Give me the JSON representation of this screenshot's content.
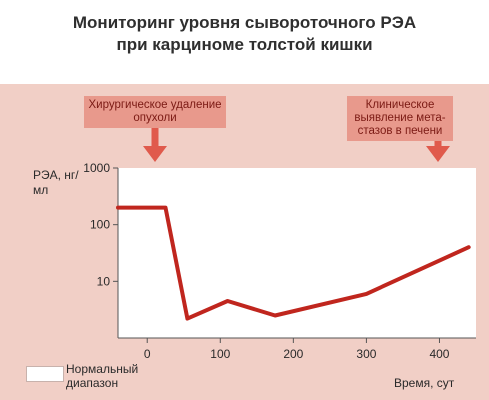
{
  "title_line1": "Мониторинг уровня сывороточного РЭА",
  "title_line2": "при карциноме толстой кишки",
  "annotations": {
    "surgery": "Хирургическое удаление опухоли",
    "metastases": "Клиническое выявление мета-стазов в печени"
  },
  "legend": {
    "normal_range": "Нормальный диапазон"
  },
  "colors": {
    "panel": "#f1cfc6",
    "series": "#c0261e",
    "annotation_box": "#e8998c",
    "arrow": "#e05a4c",
    "plot_bg": "#ffffff"
  },
  "chart_data": {
    "type": "line",
    "title": "Мониторинг уровня сывороточного РЭА при карциноме толстой кишки",
    "ylabel": "РЭА, нг/мл",
    "xlabel": "Время, сут",
    "yscale": "log",
    "ylim": [
      1,
      1000
    ],
    "xlim": [
      -40,
      450
    ],
    "yticks": [
      10,
      100,
      1000
    ],
    "xticks": [
      0,
      100,
      200,
      300,
      400
    ],
    "normal_range": [
      1,
      2.5
    ],
    "series": [
      {
        "x": [
          -40,
          25,
          55,
          110,
          175,
          300,
          440
        ],
        "y": [
          200,
          200,
          2.2,
          4.5,
          2.5,
          6,
          40
        ]
      }
    ],
    "annotations": [
      {
        "x": 0,
        "text": "Хирургическое удаление опухоли"
      },
      {
        "x": 400,
        "text": "Клиническое выявление метастазов в печени"
      }
    ]
  }
}
